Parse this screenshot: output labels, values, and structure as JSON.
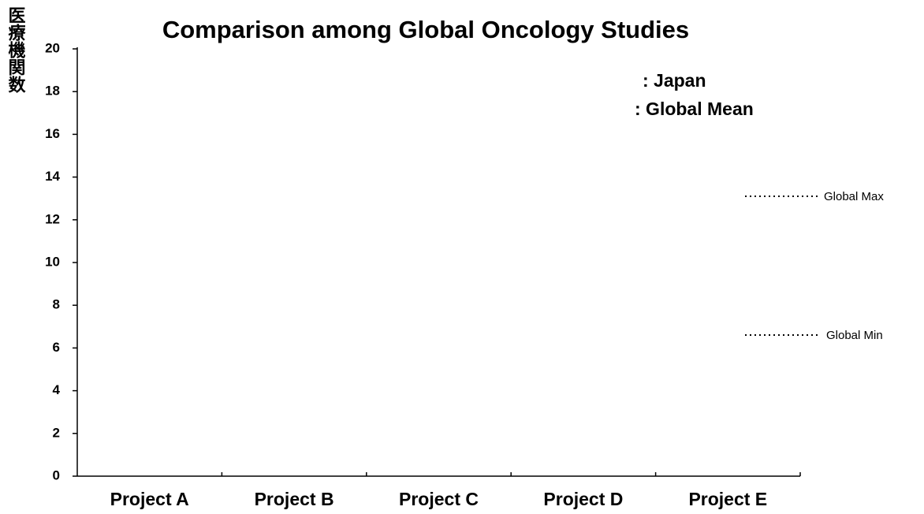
{
  "chart_data": {
    "type": "bar",
    "title": "Comparison among Global Oncology Studies",
    "ylabel": "医療機関数",
    "categories": [
      "Project A",
      "Project B",
      "Project C",
      "Project D",
      "Project E"
    ],
    "ylim": [
      0,
      20
    ],
    "yticks": [
      0,
      2,
      4,
      6,
      8,
      10,
      12,
      14,
      16,
      18,
      20
    ],
    "legend": [
      ": Japan",
      ": Global Mean"
    ],
    "annotations": [
      "Global Max",
      "Global Min"
    ]
  }
}
